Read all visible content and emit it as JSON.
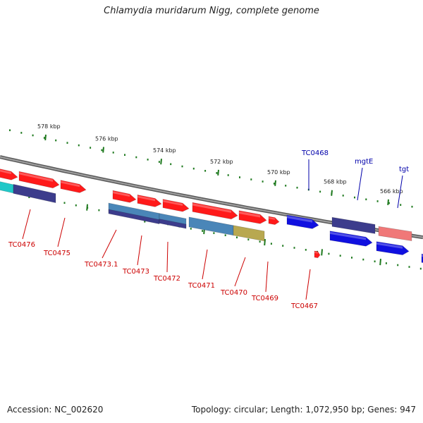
{
  "title": "Chlamydia muridarum Nigg, complete genome",
  "footer": {
    "accession": "Accession: NC_002620",
    "summary": "Topology: circular; Length: 1,072,950 bp; Genes: 947"
  },
  "colors": {
    "backbone": "#888888",
    "tick": "#1f7a1f",
    "label_red": "#cc0000",
    "label_blue": "#0000aa",
    "red": "#ff1a1a",
    "blue": "#1010e0",
    "navy": "#3c3c8c",
    "teal": "#4a86b8",
    "cyan": "#20c8c8",
    "olive": "#b8a850",
    "pink": "#f07878"
  },
  "scale_labels": [
    "578 kbp",
    "576 kbp",
    "574 kbp",
    "572 kbp",
    "570 kbp",
    "568 kbp",
    "566 kbp"
  ],
  "gene_labels": [
    {
      "text": "TC0476",
      "color": "label_red"
    },
    {
      "text": "TC0475",
      "color": "label_red"
    },
    {
      "text": "TC0473.1",
      "color": "label_red"
    },
    {
      "text": "TC0473",
      "color": "label_red"
    },
    {
      "text": "TC0472",
      "color": "label_red"
    },
    {
      "text": "TC0471",
      "color": "label_red"
    },
    {
      "text": "TC0470",
      "color": "label_red"
    },
    {
      "text": "TC0469",
      "color": "label_red"
    },
    {
      "text": "TC0467",
      "color": "label_red"
    },
    {
      "text": "TC0468",
      "color": "label_blue"
    },
    {
      "text": "mgtE",
      "color": "label_blue"
    },
    {
      "text": "tgt",
      "color": "label_blue"
    }
  ]
}
